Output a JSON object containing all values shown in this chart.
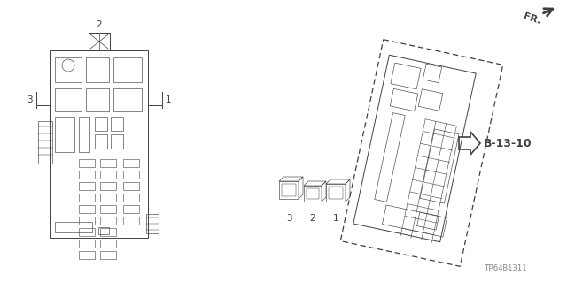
{
  "bg_color": "#ffffff",
  "line_color": "#404040",
  "part_label": "B-13-10",
  "part_code": "TP64B1311",
  "fig_w": 6.4,
  "fig_h": 3.19,
  "dpi": 100
}
